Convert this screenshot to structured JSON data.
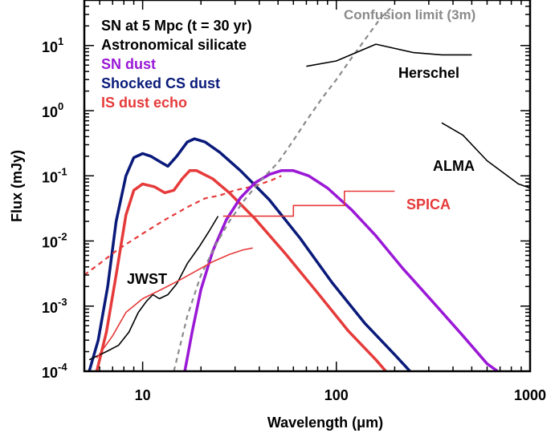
{
  "chart_data": {
    "type": "line",
    "xlabel": "Wavelength (μm)",
    "ylabel": "Flux (mJy)",
    "xscale": "log",
    "yscale": "log",
    "xlim": [
      5,
      1000
    ],
    "ylim": [
      0.0001,
      50
    ],
    "x_ticks": [
      {
        "value": 10,
        "label": "10"
      },
      {
        "value": 100,
        "label": "100"
      },
      {
        "value": 1000,
        "label": "1000"
      }
    ],
    "y_ticks": [
      {
        "value": 0.0001,
        "base": "10",
        "exp": "-4"
      },
      {
        "value": 0.001,
        "base": "10",
        "exp": "-3"
      },
      {
        "value": 0.01,
        "base": "10",
        "exp": "-2"
      },
      {
        "value": 0.1,
        "base": "10",
        "exp": "-1"
      },
      {
        "value": 1,
        "base": "10",
        "exp": "0"
      },
      {
        "value": 10,
        "base": "10",
        "exp": "1"
      }
    ],
    "legend": {
      "placement": "top-left",
      "entries": [
        {
          "text": "SN at 5 Mpc (t = 30 yr)",
          "color": "#000000"
        },
        {
          "text": "Astronomical silicate",
          "color": "#000000"
        },
        {
          "text": "SN dust",
          "color": "#9a18d6"
        },
        {
          "text": "Shocked CS dust",
          "color": "#0a1a7a"
        },
        {
          "text": "IS dust echo",
          "color": "#e63a3a"
        }
      ]
    },
    "annotations": [
      {
        "text": "Confusion limit (3m)",
        "color": "#8a8a8a"
      },
      {
        "text": "Herschel",
        "color": "#000000"
      },
      {
        "text": "ALMA",
        "color": "#000000"
      },
      {
        "text": "SPICA",
        "color": "#e63a3a"
      },
      {
        "text": "JWST",
        "color": "#000000"
      }
    ],
    "series": [
      {
        "key": "shocked",
        "color": "#0a1a7a",
        "width": 3.5,
        "dash": "",
        "points": [
          [
            5.3,
            0.0001
          ],
          [
            5.9,
            0.0003
          ],
          [
            6.6,
            0.002
          ],
          [
            7.3,
            0.02
          ],
          [
            8.2,
            0.1
          ],
          [
            9.0,
            0.19
          ],
          [
            10.0,
            0.22
          ],
          [
            11.0,
            0.2
          ],
          [
            12.5,
            0.16
          ],
          [
            13.5,
            0.14
          ],
          [
            15.0,
            0.2
          ],
          [
            17.0,
            0.33
          ],
          [
            18.5,
            0.37
          ],
          [
            21,
            0.33
          ],
          [
            25,
            0.23
          ],
          [
            32,
            0.12
          ],
          [
            45,
            0.043
          ],
          [
            65,
            0.011
          ],
          [
            95,
            0.0023
          ],
          [
            140,
            0.00055
          ],
          [
            200,
            0.00018
          ],
          [
            240,
            0.0001
          ]
        ]
      },
      {
        "key": "echo",
        "color": "#e63a3a",
        "width": 3.5,
        "dash": "",
        "points": [
          [
            5.8,
            0.0001
          ],
          [
            6.5,
            0.0004
          ],
          [
            7.3,
            0.003
          ],
          [
            8.2,
            0.025
          ],
          [
            9.0,
            0.06
          ],
          [
            10.0,
            0.075
          ],
          [
            11.5,
            0.068
          ],
          [
            13.0,
            0.055
          ],
          [
            14.5,
            0.06
          ],
          [
            16.0,
            0.09
          ],
          [
            17.5,
            0.12
          ],
          [
            19,
            0.12
          ],
          [
            23,
            0.09
          ],
          [
            28,
            0.055
          ],
          [
            38,
            0.022
          ],
          [
            55,
            0.0062
          ],
          [
            80,
            0.0016
          ],
          [
            115,
            0.00042
          ],
          [
            160,
            0.00015
          ],
          [
            180,
            0.0001
          ]
        ]
      },
      {
        "key": "echo_dashed",
        "color": "#e63a3a",
        "width": 2.2,
        "dash": "6,5",
        "points": [
          [
            5,
            0.003
          ],
          [
            6,
            0.0045
          ],
          [
            7.5,
            0.0075
          ],
          [
            10,
            0.013
          ],
          [
            13,
            0.021
          ],
          [
            17,
            0.033
          ],
          [
            21,
            0.045
          ],
          [
            25,
            0.05
          ],
          [
            30,
            0.06
          ],
          [
            38,
            0.07
          ],
          [
            46,
            0.085
          ],
          [
            52,
            0.1
          ]
        ]
      },
      {
        "key": "sn_dust",
        "color": "#9a18d6",
        "width": 3.5,
        "dash": "",
        "points": [
          [
            16.5,
            0.0001
          ],
          [
            18,
            0.0004
          ],
          [
            20,
            0.0018
          ],
          [
            23,
            0.007
          ],
          [
            27,
            0.021
          ],
          [
            32,
            0.046
          ],
          [
            38,
            0.078
          ],
          [
            45,
            0.105
          ],
          [
            52,
            0.12
          ],
          [
            60,
            0.12
          ],
          [
            72,
            0.1
          ],
          [
            90,
            0.065
          ],
          [
            120,
            0.03
          ],
          [
            160,
            0.012
          ],
          [
            220,
            0.0038
          ],
          [
            320,
            0.0011
          ],
          [
            450,
            0.00035
          ],
          [
            600,
            0.00013
          ],
          [
            680,
            0.0001
          ]
        ]
      },
      {
        "key": "confusion",
        "color": "#8a8a8a",
        "width": 2.2,
        "dash": "6,5",
        "points": [
          [
            14.5,
            0.0001
          ],
          [
            17,
            0.0007
          ],
          [
            20,
            0.003
          ],
          [
            24,
            0.009
          ],
          [
            28,
            0.02
          ],
          [
            33,
            0.04
          ],
          [
            40,
            0.08
          ],
          [
            50,
            0.16
          ],
          [
            60,
            0.35
          ],
          [
            70,
            0.7
          ],
          [
            85,
            1.6
          ],
          [
            100,
            3
          ],
          [
            120,
            6.5
          ],
          [
            145,
            14
          ],
          [
            170,
            27
          ],
          [
            195,
            40
          ]
        ]
      },
      {
        "key": "jwst",
        "color": "#000000",
        "width": 1.6,
        "dash": "",
        "points": [
          [
            5.3,
            0.00015
          ],
          [
            6.5,
            0.0002
          ],
          [
            7.5,
            0.00025
          ],
          [
            8.5,
            0.0004
          ],
          [
            9.5,
            0.0008
          ],
          [
            10.5,
            0.0012
          ],
          [
            11.3,
            0.0015
          ],
          [
            12.2,
            0.0013
          ],
          [
            13.5,
            0.0015
          ],
          [
            15,
            0.0022
          ],
          [
            17,
            0.0045
          ],
          [
            19.5,
            0.008
          ],
          [
            22,
            0.014
          ],
          [
            24.5,
            0.024
          ]
        ]
      },
      {
        "key": "jwst2",
        "color": "#e63a3a",
        "width": 1.6,
        "dash": "",
        "points": [
          [
            5.8,
            0.00016
          ],
          [
            7,
            0.00035
          ],
          [
            8.2,
            0.0008
          ],
          [
            10,
            0.0013
          ],
          [
            12.5,
            0.0018
          ],
          [
            15.5,
            0.0025
          ],
          [
            19,
            0.0035
          ],
          [
            23,
            0.0048
          ],
          [
            28,
            0.0062
          ],
          [
            33,
            0.0073
          ],
          [
            37,
            0.0078
          ]
        ]
      },
      {
        "key": "spica",
        "color": "#e63a3a",
        "width": 1.6,
        "dash": "",
        "points": [
          [
            26,
            0.024
          ],
          [
            60,
            0.024
          ],
          [
            60,
            0.035
          ],
          [
            110,
            0.035
          ],
          [
            110,
            0.058
          ],
          [
            200,
            0.058
          ]
        ]
      },
      {
        "key": "herschel",
        "color": "#000000",
        "width": 1.6,
        "dash": "",
        "points": [
          [
            70,
            4.8
          ],
          [
            100,
            5.8
          ],
          [
            160,
            10.5
          ],
          [
            250,
            7.8
          ],
          [
            350,
            7.2
          ],
          [
            500,
            7.2
          ]
        ]
      },
      {
        "key": "alma",
        "color": "#000000",
        "width": 1.6,
        "dash": "",
        "points": [
          [
            350,
            0.65
          ],
          [
            450,
            0.42
          ],
          [
            600,
            0.17
          ],
          [
            870,
            0.075
          ],
          [
            1000,
            0.065
          ]
        ]
      }
    ]
  }
}
